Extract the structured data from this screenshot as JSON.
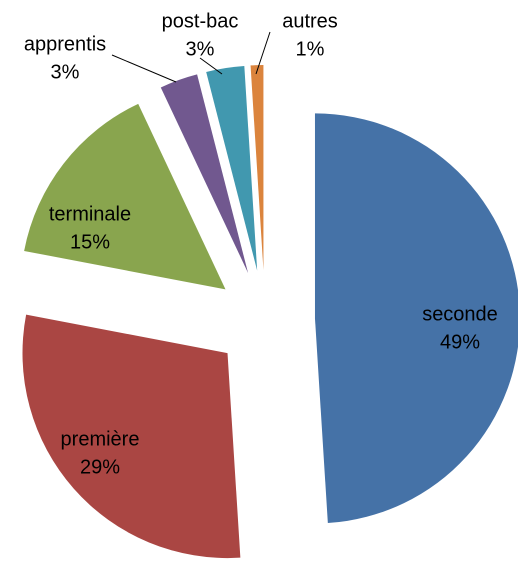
{
  "chart_data": {
    "type": "pie",
    "categories": [
      "seconde",
      "première",
      "terminale",
      "apprentis",
      "post-bac",
      "autres"
    ],
    "values": [
      49,
      29,
      15,
      3,
      3,
      1
    ],
    "value_labels": [
      "49%",
      "29%",
      "15%",
      "3%",
      "3%",
      "1%"
    ],
    "colors": [
      "#4572a7",
      "#aa4643",
      "#89a54e",
      "#71588f",
      "#4198af",
      "#db843d"
    ]
  }
}
